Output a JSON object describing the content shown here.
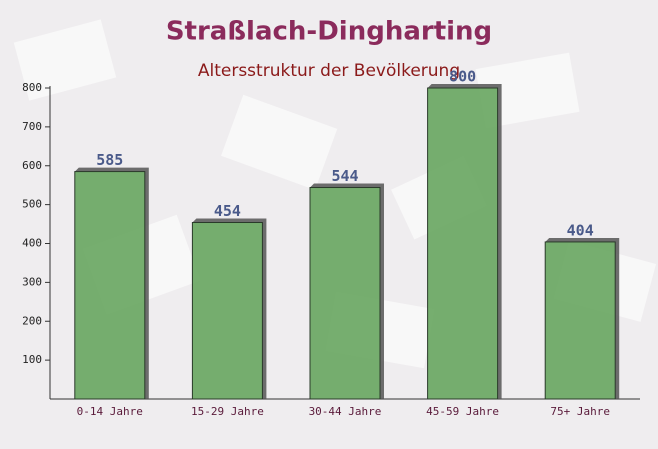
{
  "chart_data": {
    "type": "bar",
    "title": "Straßlach-Dingharting",
    "subtitle": "Altersstruktur der Bevölkerung",
    "categories": [
      "0-14 Jahre",
      "15-29 Jahre",
      "30-44 Jahre",
      "45-59 Jahre",
      "75+ Jahre"
    ],
    "values": [
      585,
      454,
      544,
      800,
      404
    ],
    "color": "#6aa763",
    "ylim": [
      0,
      800
    ],
    "yticks": [
      100,
      200,
      300,
      400,
      500,
      600,
      700,
      800
    ],
    "grid": false
  }
}
